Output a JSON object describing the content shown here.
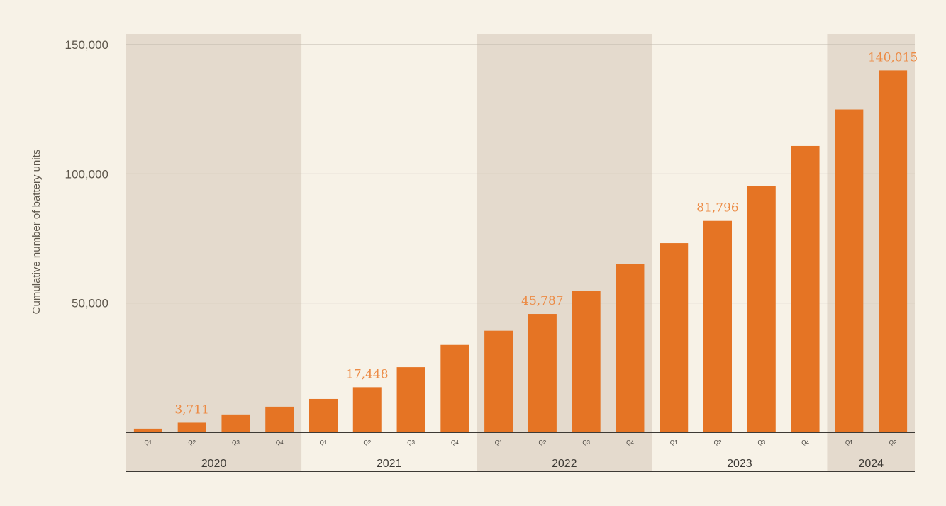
{
  "chart_data": {
    "type": "bar",
    "title": "",
    "xlabel": "",
    "ylabel": "Cumulative number of battery units",
    "ylim": [
      0,
      150000
    ],
    "yticks": [
      50000,
      100000,
      150000
    ],
    "ytick_labels": [
      "50,000",
      "100,000",
      "150,000"
    ],
    "grid": true,
    "years": [
      {
        "label": "2020",
        "quarters": 4,
        "shaded": true
      },
      {
        "label": "2021",
        "quarters": 4,
        "shaded": false
      },
      {
        "label": "2022",
        "quarters": 4,
        "shaded": true
      },
      {
        "label": "2023",
        "quarters": 4,
        "shaded": false
      },
      {
        "label": "2024",
        "quarters": 2,
        "shaded": true
      }
    ],
    "categories": [
      "Q1",
      "Q2",
      "Q3",
      "Q4",
      "Q1",
      "Q2",
      "Q3",
      "Q4",
      "Q1",
      "Q2",
      "Q3",
      "Q4",
      "Q1",
      "Q2",
      "Q3",
      "Q4",
      "Q1",
      "Q2"
    ],
    "values": [
      1400,
      3711,
      6900,
      9900,
      12900,
      17448,
      25200,
      33800,
      39300,
      45787,
      54800,
      65000,
      73200,
      81796,
      95200,
      110800,
      124900,
      140015
    ],
    "data_labels": [
      {
        "index": 1,
        "text": "3,711"
      },
      {
        "index": 5,
        "text": "17,448"
      },
      {
        "index": 9,
        "text": "45,787"
      },
      {
        "index": 13,
        "text": "81,796"
      },
      {
        "index": 17,
        "text": "140,015"
      }
    ],
    "colors": {
      "bar": "#e57424",
      "label": "#ec8b45",
      "band": "#e4dacd",
      "grid": "#bfb8ac"
    }
  }
}
